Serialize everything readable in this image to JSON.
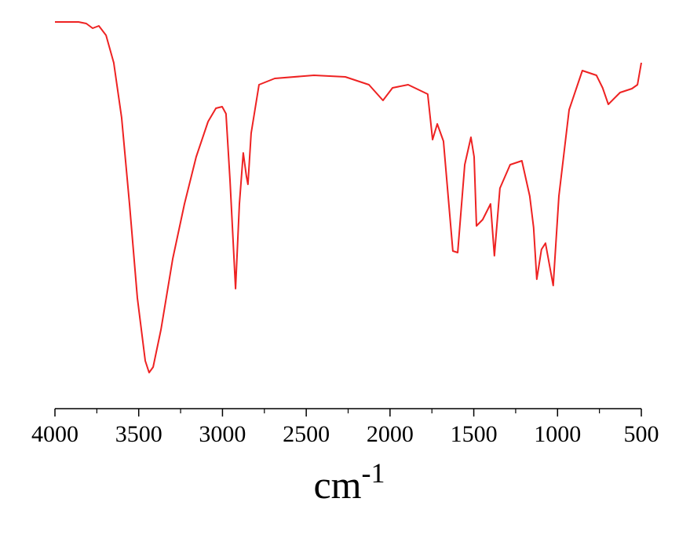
{
  "chart_data": {
    "type": "line",
    "x_label": {
      "base": "cm",
      "superscript": "-1"
    },
    "x": [
      4000,
      3859,
      3813,
      3775,
      3738,
      3695,
      3649,
      3602,
      3555,
      3508,
      3461,
      3438,
      3414,
      3367,
      3297,
      3227,
      3157,
      3086,
      3039,
      3002,
      2979,
      2955,
      2922,
      2899,
      2876,
      2857,
      2848,
      2829,
      2782,
      2688,
      2454,
      2267,
      2126,
      2042,
      1985,
      1892,
      1775,
      1746,
      1718,
      1681,
      1625,
      1596,
      1554,
      1517,
      1498,
      1484,
      1447,
      1400,
      1377,
      1344,
      1283,
      1213,
      1166,
      1143,
      1124,
      1096,
      1072,
      1026,
      992,
      931,
      852,
      768,
      731,
      697,
      627,
      556,
      523,
      500
    ],
    "series": [
      {
        "color": "#ee2222",
        "values": [
          98.4,
          98.4,
          98,
          96.8,
          97.4,
          95,
          88,
          74,
          52,
          28,
          12,
          9,
          10.4,
          20,
          38,
          52,
          64,
          73,
          76.4,
          76.8,
          75,
          58,
          30.4,
          52,
          65,
          59,
          57,
          70,
          82.4,
          84,
          84.8,
          84.4,
          82.4,
          78.4,
          81.6,
          82.4,
          80,
          68.4,
          72.4,
          68,
          40,
          39.6,
          62,
          69,
          64,
          46.4,
          48,
          52,
          38.8,
          56,
          62,
          63,
          54,
          46,
          32.8,
          40.4,
          42,
          31.2,
          54,
          76,
          86,
          84.8,
          81.6,
          77.4,
          80.4,
          81.4,
          82.4,
          88
        ]
      }
    ],
    "xlim": [
      4000,
      500
    ],
    "xticks": [
      4000,
      3500,
      3000,
      2500,
      2000,
      1500,
      1000,
      500
    ],
    "xminorticks": [
      3750,
      3250,
      2750,
      2250,
      1750,
      1250,
      750
    ],
    "ylim": [
      0,
      100
    ]
  }
}
